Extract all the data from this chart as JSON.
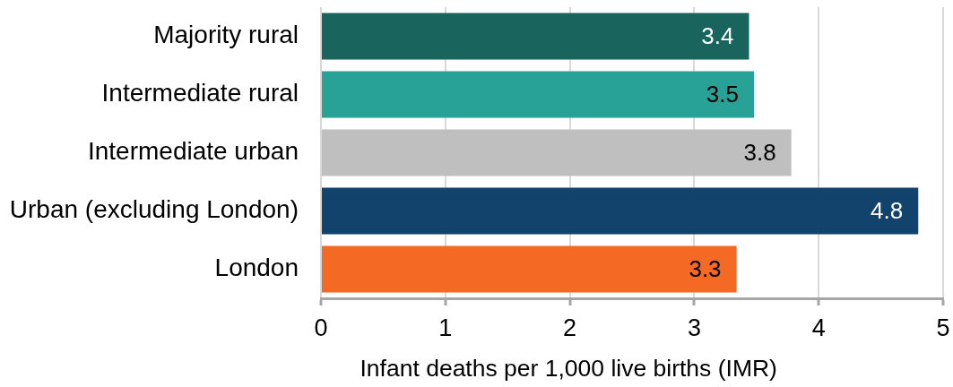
{
  "chart_data": {
    "type": "bar",
    "orientation": "horizontal",
    "categories": [
      "Majority rural",
      "Intermediate rural",
      "Intermediate urban",
      "Urban (excluding London)",
      "London"
    ],
    "values": [
      3.44,
      3.48,
      3.78,
      4.8,
      3.34
    ],
    "value_labels": [
      "3.4",
      "3.5",
      "3.8",
      "4.8",
      "3.3"
    ],
    "colors": [
      "#1a645e",
      "#28a197",
      "#bfbfbf",
      "#12436d",
      "#f46a25"
    ],
    "xlabel": "Infant deaths per 1,000 live births (IMR)",
    "xlim": [
      0,
      5
    ],
    "xticks": [
      0,
      1,
      2,
      3,
      4,
      5
    ],
    "grid": "x"
  }
}
